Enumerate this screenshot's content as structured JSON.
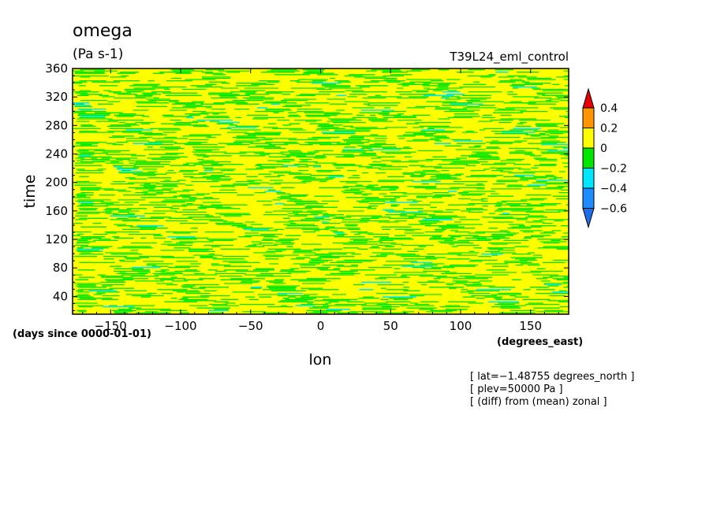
{
  "chart_data": {
    "type": "heatmap",
    "title": "omega",
    "subtitle": "(Pa s-1)",
    "run_label": "T39L24_eml_control",
    "xlabel": "lon",
    "ylabel": "time",
    "x_units": "(degrees_east)",
    "y_units": "(days since 0000-01-01)",
    "xlim": [
      -177.1875,
      177.1875
    ],
    "ylim": [
      15,
      360
    ],
    "x_ticks": [
      -150,
      -100,
      -50,
      0,
      50,
      100,
      150
    ],
    "x_tick_labels": [
      "−150",
      "−100",
      "−50",
      "0",
      "50",
      "100",
      "150"
    ],
    "y_ticks": [
      40,
      80,
      120,
      160,
      200,
      240,
      280,
      320,
      360
    ],
    "y_tick_labels": [
      "40",
      "80",
      "120",
      "160",
      "200",
      "240",
      "280",
      "320",
      "360"
    ],
    "colorbar": {
      "levels": [
        -0.6,
        -0.4,
        -0.2,
        0,
        0.2,
        0.4
      ],
      "level_labels": [
        "−0.6",
        "−0.4",
        "−0.2",
        "0",
        "0.2",
        "0.4"
      ],
      "colors": [
        "#1e6ee6",
        "#1e8cff",
        "#00e6ff",
        "#00e600",
        "#ffff00",
        "#ff9600",
        "#e60000"
      ],
      "extend": "both"
    },
    "dominant_bands": [
      {
        "range": [
          0,
          0.2
        ],
        "color": "#ffff00",
        "coverage": "majority"
      },
      {
        "range": [
          -0.2,
          0
        ],
        "color": "#00e600",
        "coverage": "streaks"
      },
      {
        "range": [
          -0.4,
          -0.2
        ],
        "color": "#00e6ff",
        "coverage": "sparse patches"
      },
      {
        "range": [
          -0.6,
          -0.4
        ],
        "color": "#1e8cff",
        "coverage": "rare"
      }
    ],
    "pattern": "fine horizontal streaks of negative omega drifting westward with time (diagonal bands)",
    "annotations": [
      "[ lat=−1.48755 degrees_north ]",
      "[ plev=50000 Pa ]",
      "[ (diff) from (mean) zonal ]"
    ]
  }
}
